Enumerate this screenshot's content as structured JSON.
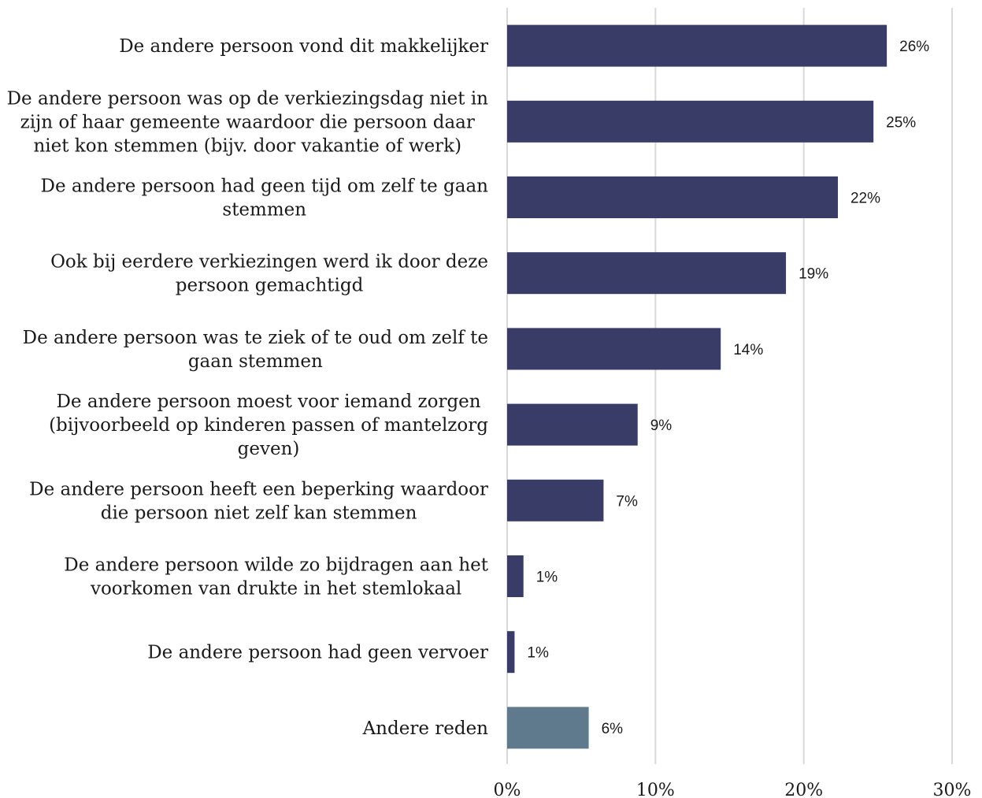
{
  "chart_data": {
    "type": "bar",
    "orientation": "horizontal",
    "categories": [
      [
        "De andere persoon vond dit makkelijker"
      ],
      [
        "De andere persoon was op de verkiezingsdag niet in",
        "zijn of haar gemeente waardoor die persoon daar",
        "niet kon stemmen (bijv. door vakantie of werk)"
      ],
      [
        "De andere persoon had geen tijd om zelf te gaan",
        "stemmen"
      ],
      [
        "Ook bij eerdere verkiezingen werd ik door deze",
        "persoon gemachtigd"
      ],
      [
        "De andere persoon was te ziek of te oud om zelf te",
        "gaan stemmen"
      ],
      [
        "De andere persoon moest voor iemand zorgen",
        "(bijvoorbeeld op kinderen passen of mantelzorg",
        "geven)"
      ],
      [
        "De andere persoon heeft een beperking waardoor",
        "die persoon niet zelf kan stemmen"
      ],
      [
        "De andere persoon wilde zo bijdragen aan het",
        "voorkomen van drukte in het stemlokaal"
      ],
      [
        "De andere persoon had geen vervoer"
      ],
      [
        "Andere reden"
      ]
    ],
    "values": [
      25.6,
      24.7,
      22.3,
      18.8,
      14.4,
      8.8,
      6.5,
      1.1,
      0.5,
      5.5
    ],
    "value_labels": [
      "26%",
      "25%",
      "22%",
      "19%",
      "14%",
      "9%",
      "7%",
      "1%",
      "1%",
      "6%"
    ],
    "bar_colors": [
      "#383c66",
      "#383c66",
      "#383c66",
      "#383c66",
      "#383c66",
      "#383c66",
      "#383c66",
      "#383c66",
      "#383c66",
      "#5f7a8c"
    ],
    "xlim": [
      0,
      30
    ],
    "xticks": [
      "0%",
      "10%",
      "20%",
      "30%"
    ],
    "grid": true
  }
}
